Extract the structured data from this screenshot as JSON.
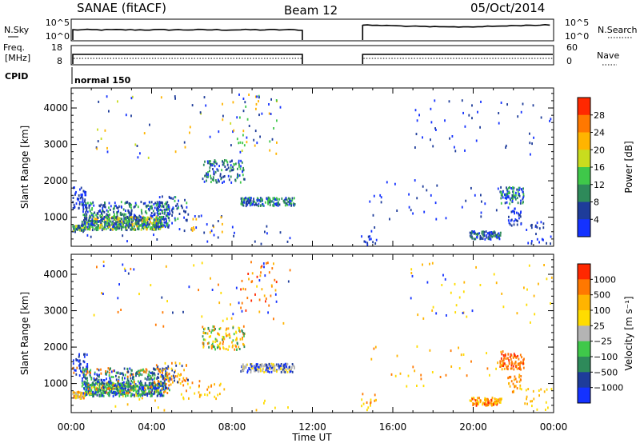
{
  "header": {
    "radar": "SANAE (fitACF)",
    "beam": "Beam 12",
    "date": "05/Oct/2014"
  },
  "top_panels": {
    "nsky_label": "N.Sky",
    "nsky_ticks": [
      "10^5",
      "10^0"
    ],
    "nsearch_label": "N.Search",
    "nsearch_ticks": [
      "10^5",
      "10^0"
    ],
    "freq_label_1": "Freq.",
    "freq_label_2": "[MHz]",
    "freq_ticks": [
      "18",
      "8"
    ],
    "nave_label": "Nave",
    "nave_ticks": [
      "60",
      "0"
    ],
    "cpid_label": "CPID",
    "cpid_value": "normal 150"
  },
  "colors": {
    "frame": "#000000",
    "background": "#ffffff"
  },
  "chart_data": [
    {
      "type": "heatmap",
      "name": "power",
      "ylabel": "Slant Range [km]",
      "y_ticks": [
        "1000",
        "2000",
        "3000",
        "4000"
      ],
      "ylim": [
        200,
        4550
      ],
      "x_ticks": [
        "00:00",
        "04:00",
        "08:00",
        "12:00",
        "16:00",
        "20:00",
        "00:00"
      ],
      "xlim_hours": [
        0,
        24
      ],
      "colorbar_label": "Power [dB]",
      "colorbar_ticks": [
        "4",
        "8",
        "12",
        "16",
        "20",
        "24",
        "28"
      ],
      "colorbar_colors": [
        "#1432ff",
        "#1e3c9a",
        "#2e8a5a",
        "#3fc84a",
        "#c8dc1e",
        "#ffb400",
        "#ff7800",
        "#ff2800"
      ],
      "clusters": [
        {
          "t": [
            0.0,
            0.6
          ],
          "r": [
            620,
            800
          ],
          "n": 55,
          "c": [
            0,
            1,
            1,
            3,
            4
          ]
        },
        {
          "t": [
            0.0,
            0.8
          ],
          "r": [
            1250,
            1850
          ],
          "n": 50,
          "c": [
            0,
            1
          ]
        },
        {
          "t": [
            0.6,
            4.6
          ],
          "r": [
            680,
            1050
          ],
          "n": 420,
          "c": [
            3,
            4,
            2,
            2,
            5,
            1
          ]
        },
        {
          "t": [
            0.5,
            4.9
          ],
          "r": [
            750,
            1450
          ],
          "n": 380,
          "c": [
            1,
            1,
            2,
            0,
            3
          ]
        },
        {
          "t": [
            4.2,
            5.8
          ],
          "r": [
            950,
            1600
          ],
          "n": 60,
          "c": [
            0,
            1,
            3
          ]
        },
        {
          "t": [
            5.5,
            7.6
          ],
          "r": [
            600,
            1100
          ],
          "n": 25,
          "c": [
            0,
            1,
            5
          ]
        },
        {
          "t": [
            6.5,
            8.6
          ],
          "r": [
            1950,
            2600
          ],
          "n": 120,
          "c": [
            1,
            0,
            2,
            3
          ]
        },
        {
          "t": [
            8.0,
            10.2
          ],
          "r": [
            3000,
            4400
          ],
          "n": 40,
          "c": [
            0,
            1,
            3,
            5
          ]
        },
        {
          "t": [
            8.4,
            11.1
          ],
          "r": [
            1340,
            1570
          ],
          "n": 160,
          "c": [
            1,
            0,
            2,
            3
          ]
        },
        {
          "t": [
            1.0,
            11.0
          ],
          "r": [
            2600,
            4400
          ],
          "n": 55,
          "c": [
            0,
            1,
            4,
            5
          ]
        },
        {
          "t": [
            0.0,
            11.0
          ],
          "r": [
            250,
            900
          ],
          "n": 25,
          "c": [
            0,
            1
          ]
        },
        {
          "t": [
            14.4,
            15.2
          ],
          "r": [
            250,
            750
          ],
          "n": 15,
          "c": [
            0,
            1
          ]
        },
        {
          "t": [
            14.8,
            21.6
          ],
          "r": [
            900,
            2100
          ],
          "n": 35,
          "c": [
            0,
            1
          ]
        },
        {
          "t": [
            16.8,
            20.4
          ],
          "r": [
            2800,
            4400
          ],
          "n": 30,
          "c": [
            0,
            1
          ]
        },
        {
          "t": [
            19.8,
            21.4
          ],
          "r": [
            420,
            640
          ],
          "n": 90,
          "c": [
            0,
            1,
            2
          ]
        },
        {
          "t": [
            21.3,
            22.5
          ],
          "r": [
            1400,
            1850
          ],
          "n": 90,
          "c": [
            0,
            1,
            2,
            3
          ]
        },
        {
          "t": [
            21.7,
            22.4
          ],
          "r": [
            800,
            1300
          ],
          "n": 30,
          "c": [
            0,
            1
          ]
        },
        {
          "t": [
            22.3,
            24.0
          ],
          "r": [
            300,
            900
          ],
          "n": 25,
          "c": [
            0,
            1
          ]
        },
        {
          "t": [
            21.0,
            24.0
          ],
          "r": [
            2700,
            4300
          ],
          "n": 18,
          "c": [
            0,
            1
          ]
        }
      ]
    },
    {
      "type": "heatmap",
      "name": "velocity",
      "ylabel": "Slant Range [km]",
      "y_ticks": [
        "1000",
        "2000",
        "3000",
        "4000"
      ],
      "ylim": [
        200,
        4550
      ],
      "x_ticks": [
        "00:00",
        "04:00",
        "08:00",
        "12:00",
        "16:00",
        "20:00",
        "00:00"
      ],
      "xlim_hours": [
        0,
        24
      ],
      "xlabel": "Time UT",
      "colorbar_label": "Velocity [m s⁻¹]",
      "colorbar_ticks": [
        "1000",
        "500",
        "100",
        "25",
        "−25",
        "−100",
        "−500",
        "−1000"
      ],
      "colorbar_colors": [
        "#1432ff",
        "#1e3c9a",
        "#2e8a5a",
        "#3fc84a",
        "#b4b4b4",
        "#ffdc00",
        "#ffb400",
        "#ff7800",
        "#ff2800"
      ],
      "clusters": [
        {
          "t": [
            0.0,
            0.6
          ],
          "r": [
            620,
            800
          ],
          "n": 55,
          "c": [
            5,
            6,
            7,
            4
          ]
        },
        {
          "t": [
            0.0,
            0.8
          ],
          "r": [
            1250,
            1850
          ],
          "n": 45,
          "c": [
            0,
            1,
            7
          ]
        },
        {
          "t": [
            0.6,
            4.6
          ],
          "r": [
            680,
            1050
          ],
          "n": 420,
          "c": [
            3,
            3,
            2,
            5,
            1,
            0
          ]
        },
        {
          "t": [
            0.5,
            4.9
          ],
          "r": [
            750,
            1450
          ],
          "n": 380,
          "c": [
            0,
            1,
            2,
            3,
            7
          ]
        },
        {
          "t": [
            4.2,
            5.8
          ],
          "r": [
            950,
            1600
          ],
          "n": 60,
          "c": [
            5,
            6,
            1,
            7
          ]
        },
        {
          "t": [
            5.5,
            7.6
          ],
          "r": [
            600,
            1100
          ],
          "n": 25,
          "c": [
            6,
            7,
            5
          ]
        },
        {
          "t": [
            6.5,
            8.6
          ],
          "r": [
            1950,
            2600
          ],
          "n": 120,
          "c": [
            5,
            6,
            7,
            3,
            2
          ]
        },
        {
          "t": [
            8.0,
            10.2
          ],
          "r": [
            3000,
            4400
          ],
          "n": 40,
          "c": [
            6,
            7,
            0,
            8
          ]
        },
        {
          "t": [
            8.4,
            11.1
          ],
          "r": [
            1340,
            1570
          ],
          "n": 160,
          "c": [
            4,
            5,
            4,
            1,
            0
          ]
        },
        {
          "t": [
            1.0,
            11.0
          ],
          "r": [
            2600,
            4400
          ],
          "n": 55,
          "c": [
            5,
            6,
            7,
            0,
            1
          ]
        },
        {
          "t": [
            0.0,
            11.0
          ],
          "r": [
            250,
            900
          ],
          "n": 25,
          "c": [
            5,
            6
          ]
        },
        {
          "t": [
            14.4,
            15.2
          ],
          "r": [
            250,
            750
          ],
          "n": 15,
          "c": [
            5,
            7
          ]
        },
        {
          "t": [
            14.8,
            21.6
          ],
          "r": [
            900,
            2100
          ],
          "n": 35,
          "c": [
            5,
            6,
            7
          ]
        },
        {
          "t": [
            16.8,
            20.4
          ],
          "r": [
            2800,
            4400
          ],
          "n": 30,
          "c": [
            5,
            6,
            0
          ]
        },
        {
          "t": [
            19.8,
            21.4
          ],
          "r": [
            420,
            640
          ],
          "n": 90,
          "c": [
            5,
            6,
            7,
            8
          ]
        },
        {
          "t": [
            21.3,
            22.5
          ],
          "r": [
            1400,
            1850
          ],
          "n": 90,
          "c": [
            7,
            8,
            7,
            6
          ]
        },
        {
          "t": [
            21.7,
            22.4
          ],
          "r": [
            800,
            1300
          ],
          "n": 30,
          "c": [
            6,
            7
          ]
        },
        {
          "t": [
            22.3,
            24.0
          ],
          "r": [
            300,
            900
          ],
          "n": 25,
          "c": [
            5,
            6
          ]
        },
        {
          "t": [
            21.0,
            24.0
          ],
          "r": [
            2700,
            4300
          ],
          "n": 18,
          "c": [
            5,
            6
          ]
        }
      ]
    }
  ]
}
